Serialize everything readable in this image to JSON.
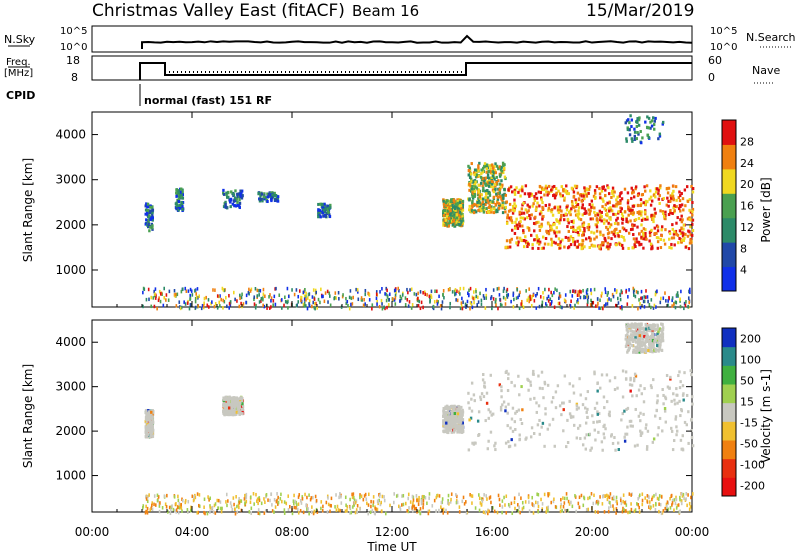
{
  "header": {
    "title": "Christmas Valley East (fitACF)",
    "beam": "Beam 16",
    "date": "15/Mar/2019"
  },
  "panels": {
    "nsky_label": "N.Sky",
    "nsky_top": "10^5",
    "nsky_bottom": "10^0",
    "nsearch_top": "10^5",
    "nsearch_bottom": "10^0",
    "nsearch_label": "N.Search",
    "freq_label": "Freq.",
    "freq_unit": "[MHz]",
    "freq_ticks": [
      "18",
      "8"
    ],
    "nave_ticks": [
      "60",
      "0"
    ],
    "nave_label": "Nave",
    "cpid_label": "CPID",
    "cpid_value": "normal (fast) 151 RF"
  },
  "chart_data": [
    {
      "type": "heatmap",
      "name": "Power",
      "ylabel": "Slant Range [km]",
      "yticks": [
        1000,
        2000,
        3000,
        4000
      ],
      "ylim": [
        180,
        4500
      ],
      "colorbar_label": "Power [dB]",
      "colorbar_ticks": [
        4,
        8,
        12,
        16,
        20,
        24,
        28
      ],
      "colorbar_range": [
        0,
        32
      ],
      "colors": [
        "#1030e8",
        "#2048a8",
        "#2c8a68",
        "#4aa050",
        "#f0d820",
        "#f08010",
        "#e01010"
      ],
      "regions": [
        {
          "t": [
            2.1,
            2.4
          ],
          "r": [
            1900,
            2500
          ],
          "level": "low"
        },
        {
          "t": [
            3.3,
            3.6
          ],
          "r": [
            2350,
            2850
          ],
          "level": "low"
        },
        {
          "t": [
            5.2,
            6.0
          ],
          "r": [
            2400,
            2800
          ],
          "level": "low"
        },
        {
          "t": [
            6.6,
            7.4
          ],
          "r": [
            2550,
            2750
          ],
          "level": "low"
        },
        {
          "t": [
            9.0,
            9.5
          ],
          "r": [
            2200,
            2500
          ],
          "level": "low"
        },
        {
          "t": [
            14.0,
            14.8
          ],
          "r": [
            2000,
            2600
          ],
          "level": "mid"
        },
        {
          "t": [
            15.0,
            16.5
          ],
          "r": [
            2300,
            3400
          ],
          "level": "mid"
        },
        {
          "t": [
            16.5,
            24.0
          ],
          "r": [
            1500,
            2900
          ],
          "level": "high"
        },
        {
          "t": [
            21.3,
            22.8
          ],
          "r": [
            3800,
            4450
          ],
          "level": "low"
        }
      ]
    },
    {
      "type": "heatmap",
      "name": "Velocity",
      "ylabel": "Slant Range [km]",
      "xlabel": "Time UT",
      "xticks": [
        "00:00",
        "04:00",
        "08:00",
        "12:00",
        "16:00",
        "20:00",
        "00:00"
      ],
      "xlim": [
        0,
        24
      ],
      "yticks": [
        1000,
        2000,
        3000,
        4000
      ],
      "ylim": [
        180,
        4500
      ],
      "colorbar_label": "Velocity [m s-1]",
      "colorbar_ticks": [
        "200",
        "100",
        "50",
        "15",
        "-15",
        "-50",
        "-100",
        "-200"
      ],
      "colors": [
        "#1030c0",
        "#2a8a8a",
        "#40b040",
        "#a0d050",
        "#c8c8c0",
        "#f0c030",
        "#f08010",
        "#e83010",
        "#e81010"
      ],
      "regions": [
        {
          "t": [
            2.1,
            2.4
          ],
          "r": [
            1900,
            2500
          ],
          "level": "ground"
        },
        {
          "t": [
            5.2,
            6.0
          ],
          "r": [
            2400,
            2800
          ],
          "level": "ground"
        },
        {
          "t": [
            14.0,
            14.8
          ],
          "r": [
            2000,
            2600
          ],
          "level": "ground"
        },
        {
          "t": [
            15.0,
            24.0
          ],
          "r": [
            1600,
            3400
          ],
          "level": "ground"
        },
        {
          "t": [
            21.3,
            22.8
          ],
          "r": [
            3800,
            4450
          ],
          "level": "ground"
        }
      ]
    }
  ]
}
